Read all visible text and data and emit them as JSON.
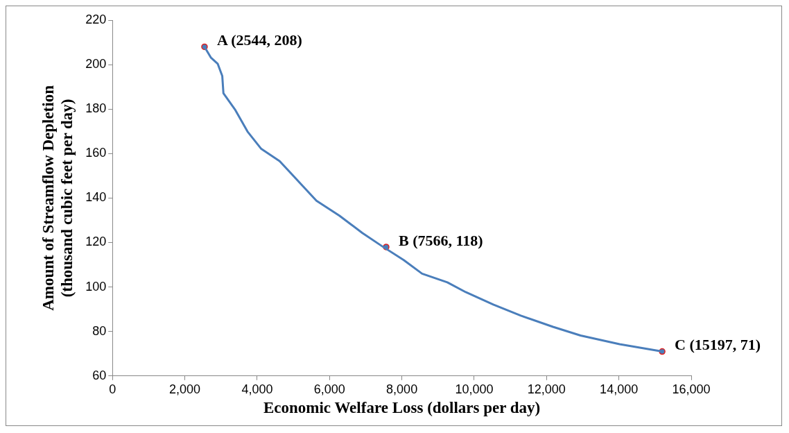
{
  "chart_data": {
    "type": "line",
    "xlabel": "Economic Welfare Loss (dollars per day)",
    "ylabel": "Amount of Streamflow Depletion\n(thousand cubic feet per day)",
    "xlim": [
      0,
      16000
    ],
    "xticks": [
      {
        "value": 0,
        "label": "0"
      },
      {
        "value": 2000,
        "label": "2,000"
      },
      {
        "value": 4000,
        "label": "4,000"
      },
      {
        "value": 6000,
        "label": "6,000"
      },
      {
        "value": 8000,
        "label": "8,000"
      },
      {
        "value": 10000,
        "label": "10,000"
      },
      {
        "value": 12000,
        "label": "12,000"
      },
      {
        "value": 14000,
        "label": "14,000"
      },
      {
        "value": 16000,
        "label": "16,000"
      }
    ],
    "ylim": [
      60,
      220
    ],
    "yticks": [
      60,
      80,
      100,
      120,
      140,
      160,
      180,
      200,
      220
    ],
    "grid": false,
    "legend": false,
    "series": [
      {
        "type": "line",
        "color": "#4a7ebb",
        "marker": "none",
        "x": [
          2544,
          2718,
          2908,
          3035,
          3067,
          3384,
          3733,
          4114,
          4622,
          5130,
          5638,
          6272,
          6590,
          6908,
          7448,
          8051,
          8559,
          9257,
          9765,
          10527,
          11289,
          12178,
          12940,
          14019,
          15197
        ],
        "values": [
          208,
          203.2,
          200.4,
          194.9,
          187.1,
          179.9,
          169.9,
          162.1,
          156.6,
          147.7,
          138.8,
          132.1,
          128.2,
          124.3,
          118.4,
          112.1,
          106,
          102.1,
          97.7,
          92.1,
          87.1,
          82.1,
          78.2,
          74.3,
          71
        ]
      },
      {
        "type": "scatter",
        "color": "#4a7ebb",
        "marker": "circle",
        "x": [
          2544,
          7566,
          15197
        ],
        "values": [
          208,
          118,
          71
        ]
      }
    ],
    "annotations": [
      {
        "text": "A (2544, 208)",
        "x": 2544,
        "y": 208
      },
      {
        "text": "B (7566, 118)",
        "x": 7566,
        "y": 118
      },
      {
        "text": "C (15197, 71)",
        "x": 15197,
        "y": 71
      }
    ]
  }
}
